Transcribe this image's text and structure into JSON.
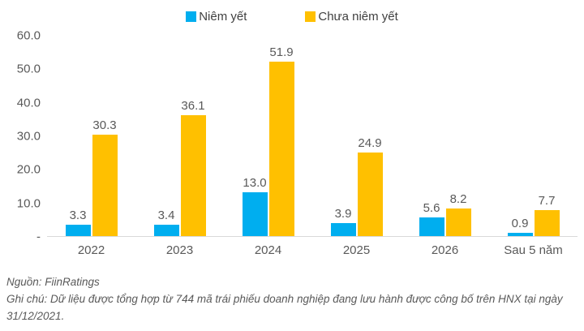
{
  "colors": {
    "listed_blue": "#00AEEF",
    "unlisted_yellow": "#FFC000",
    "axis_text": "#595959",
    "baseline": "#D9D9D9"
  },
  "chart_data": {
    "type": "bar",
    "categories": [
      "2022",
      "2023",
      "2024",
      "2025",
      "2026",
      "Sau 5 năm"
    ],
    "series": [
      {
        "name": "Niêm yết",
        "color": "#00AEEF",
        "values": [
          3.3,
          3.4,
          13.0,
          3.9,
          5.6,
          0.9
        ]
      },
      {
        "name": "Chưa niêm yết",
        "color": "#FFC000",
        "values": [
          30.3,
          36.1,
          51.9,
          24.9,
          8.2,
          7.7
        ]
      }
    ],
    "value_labels": [
      [
        "3.3",
        "3.4",
        "13.0",
        "3.9",
        "5.6",
        "0.9"
      ],
      [
        "30.3",
        "36.1",
        "51.9",
        "24.9",
        "8.2",
        "7.7"
      ]
    ],
    "title": "",
    "xlabel": "",
    "ylabel": "",
    "ylim": [
      0,
      60
    ],
    "yticks": [
      "60.0",
      "50.0",
      "40.0",
      "30.0",
      "20.0",
      "10.0",
      "-"
    ],
    "grid": false,
    "legend_position": "top-center"
  },
  "footer": {
    "source": "Nguồn: FiinRatings",
    "note": "Ghi chú: Dữ liệu được tổng hợp từ 744 mã trái phiếu doanh nghiệp đang lưu hành được công bố trên HNX tại ngày 31/12/2021."
  }
}
